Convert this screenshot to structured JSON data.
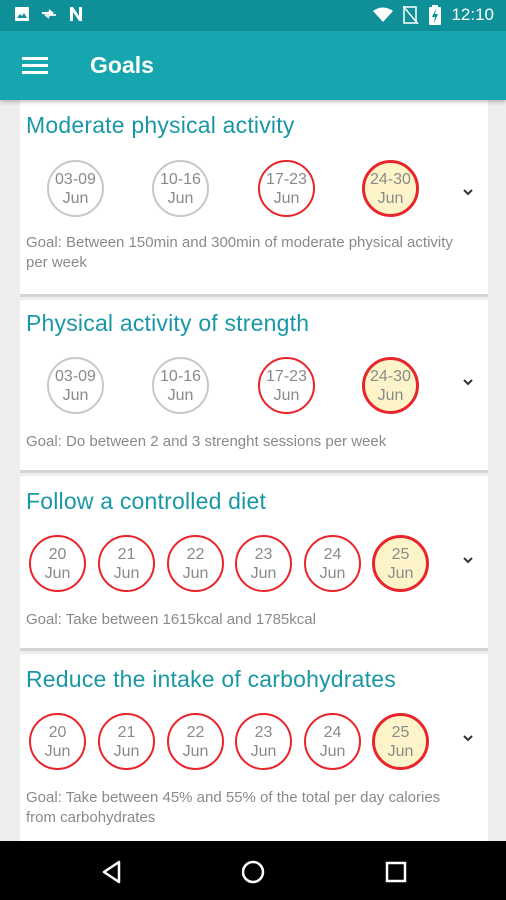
{
  "status_bar": {
    "time": "12:10",
    "left_icons": [
      "image-icon",
      "sync-icon",
      "n-icon"
    ],
    "right_icons": [
      "wifi-icon",
      "no-signal-icon",
      "battery-icon"
    ]
  },
  "app_bar": {
    "title": "Goals",
    "menu_icon": "hamburger-menu-icon"
  },
  "colors": {
    "status_bar": "#0f8f98",
    "app_bar": "#15a6af",
    "title_teal": "#1a97a6",
    "circle_red": "#e8252a",
    "circle_gray": "#c8c8c8",
    "current_fill": "#fdf5c9"
  },
  "goals": [
    {
      "title": "Moderate physical activity",
      "periods": [
        {
          "top": "03-09",
          "bottom": "Jun",
          "state": "gray"
        },
        {
          "top": "10-16",
          "bottom": "Jun",
          "state": "gray"
        },
        {
          "top": "17-23",
          "bottom": "Jun",
          "state": "red"
        },
        {
          "top": "24-30",
          "bottom": "Jun",
          "state": "current"
        }
      ],
      "goal_text": "Goal: Between 150min and 300min of moderate physical activity per week"
    },
    {
      "title": "Physical activity of strength",
      "periods": [
        {
          "top": "03-09",
          "bottom": "Jun",
          "state": "gray"
        },
        {
          "top": "10-16",
          "bottom": "Jun",
          "state": "gray"
        },
        {
          "top": "17-23",
          "bottom": "Jun",
          "state": "red"
        },
        {
          "top": "24-30",
          "bottom": "Jun",
          "state": "current"
        }
      ],
      "goal_text": "Goal: Do between 2 and 3 strenght sessions  per week"
    },
    {
      "title": "Follow a controlled diet",
      "periods": [
        {
          "top": "20",
          "bottom": "Jun",
          "state": "red"
        },
        {
          "top": "21",
          "bottom": "Jun",
          "state": "red"
        },
        {
          "top": "22",
          "bottom": "Jun",
          "state": "red"
        },
        {
          "top": "23",
          "bottom": "Jun",
          "state": "red"
        },
        {
          "top": "24",
          "bottom": "Jun",
          "state": "red"
        },
        {
          "top": "25",
          "bottom": "Jun",
          "state": "current"
        }
      ],
      "goal_text": "Goal: Take between 1615kcal and 1785kcal"
    },
    {
      "title": "Reduce the intake of carbohydrates",
      "periods": [
        {
          "top": "20",
          "bottom": "Jun",
          "state": "red"
        },
        {
          "top": "21",
          "bottom": "Jun",
          "state": "red"
        },
        {
          "top": "22",
          "bottom": "Jun",
          "state": "red"
        },
        {
          "top": "23",
          "bottom": "Jun",
          "state": "red"
        },
        {
          "top": "24",
          "bottom": "Jun",
          "state": "red"
        },
        {
          "top": "25",
          "bottom": "Jun",
          "state": "current"
        }
      ],
      "goal_text": "Goal: Take between 45% and 55% of the total per day calories from carbohydrates"
    }
  ],
  "nav_bar": {
    "buttons": [
      "back-icon",
      "home-icon",
      "recents-icon"
    ]
  }
}
